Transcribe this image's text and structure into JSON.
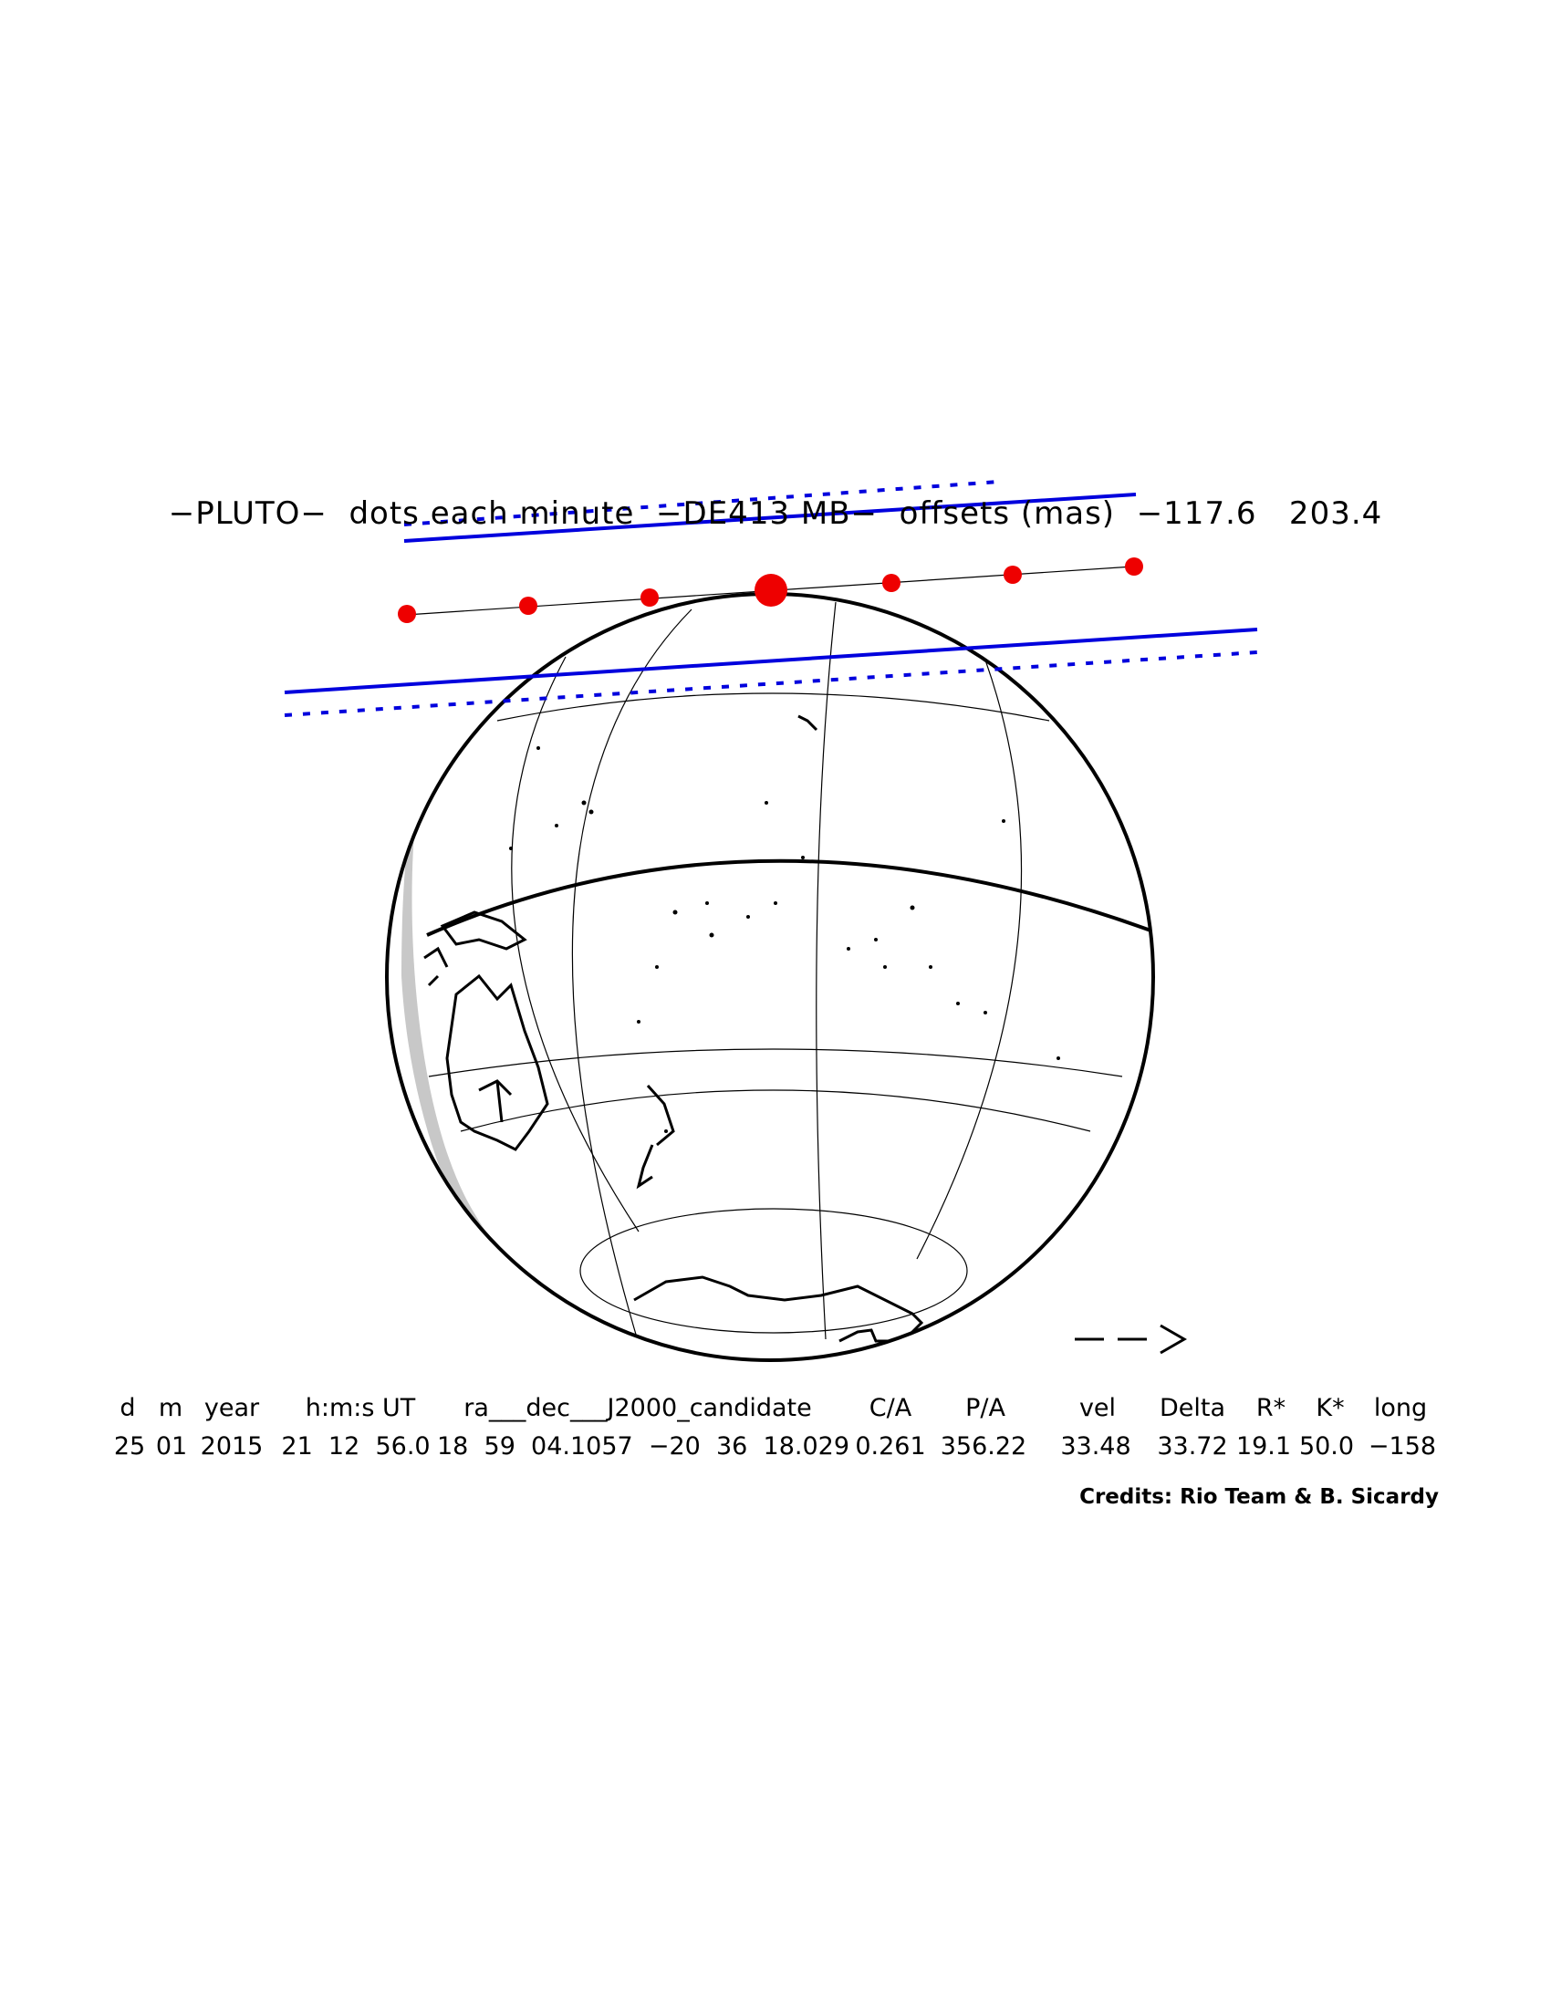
{
  "title": "−PLUTO−  dots each minute  −DE413 MB−  offsets (mas)  −117.6   203.4",
  "direction_arrow": "— — >",
  "table": {
    "headers": [
      "d",
      "m",
      "year",
      "h:m:s UT",
      "ra___dec___J2000_candidate",
      "C/A",
      "P/A",
      "vel",
      "Delta",
      "R*",
      "K*",
      "long"
    ],
    "values": [
      "25",
      "01",
      "2015",
      "21  12  56.0",
      "18  59  04.1057  −20  36  18.029",
      "0.261",
      "356.22",
      "33.48",
      "33.72",
      "19.1",
      "50.0",
      "−158"
    ]
  },
  "credits": "Credits: Rio Team & B. Sicardy",
  "colors": {
    "path_lines": "#0000dd",
    "dots": "#ee0000",
    "night_shade": "#c8c8c8",
    "grid": "#000000"
  },
  "icons": {
    "arrow": "right-arrow-icon"
  }
}
